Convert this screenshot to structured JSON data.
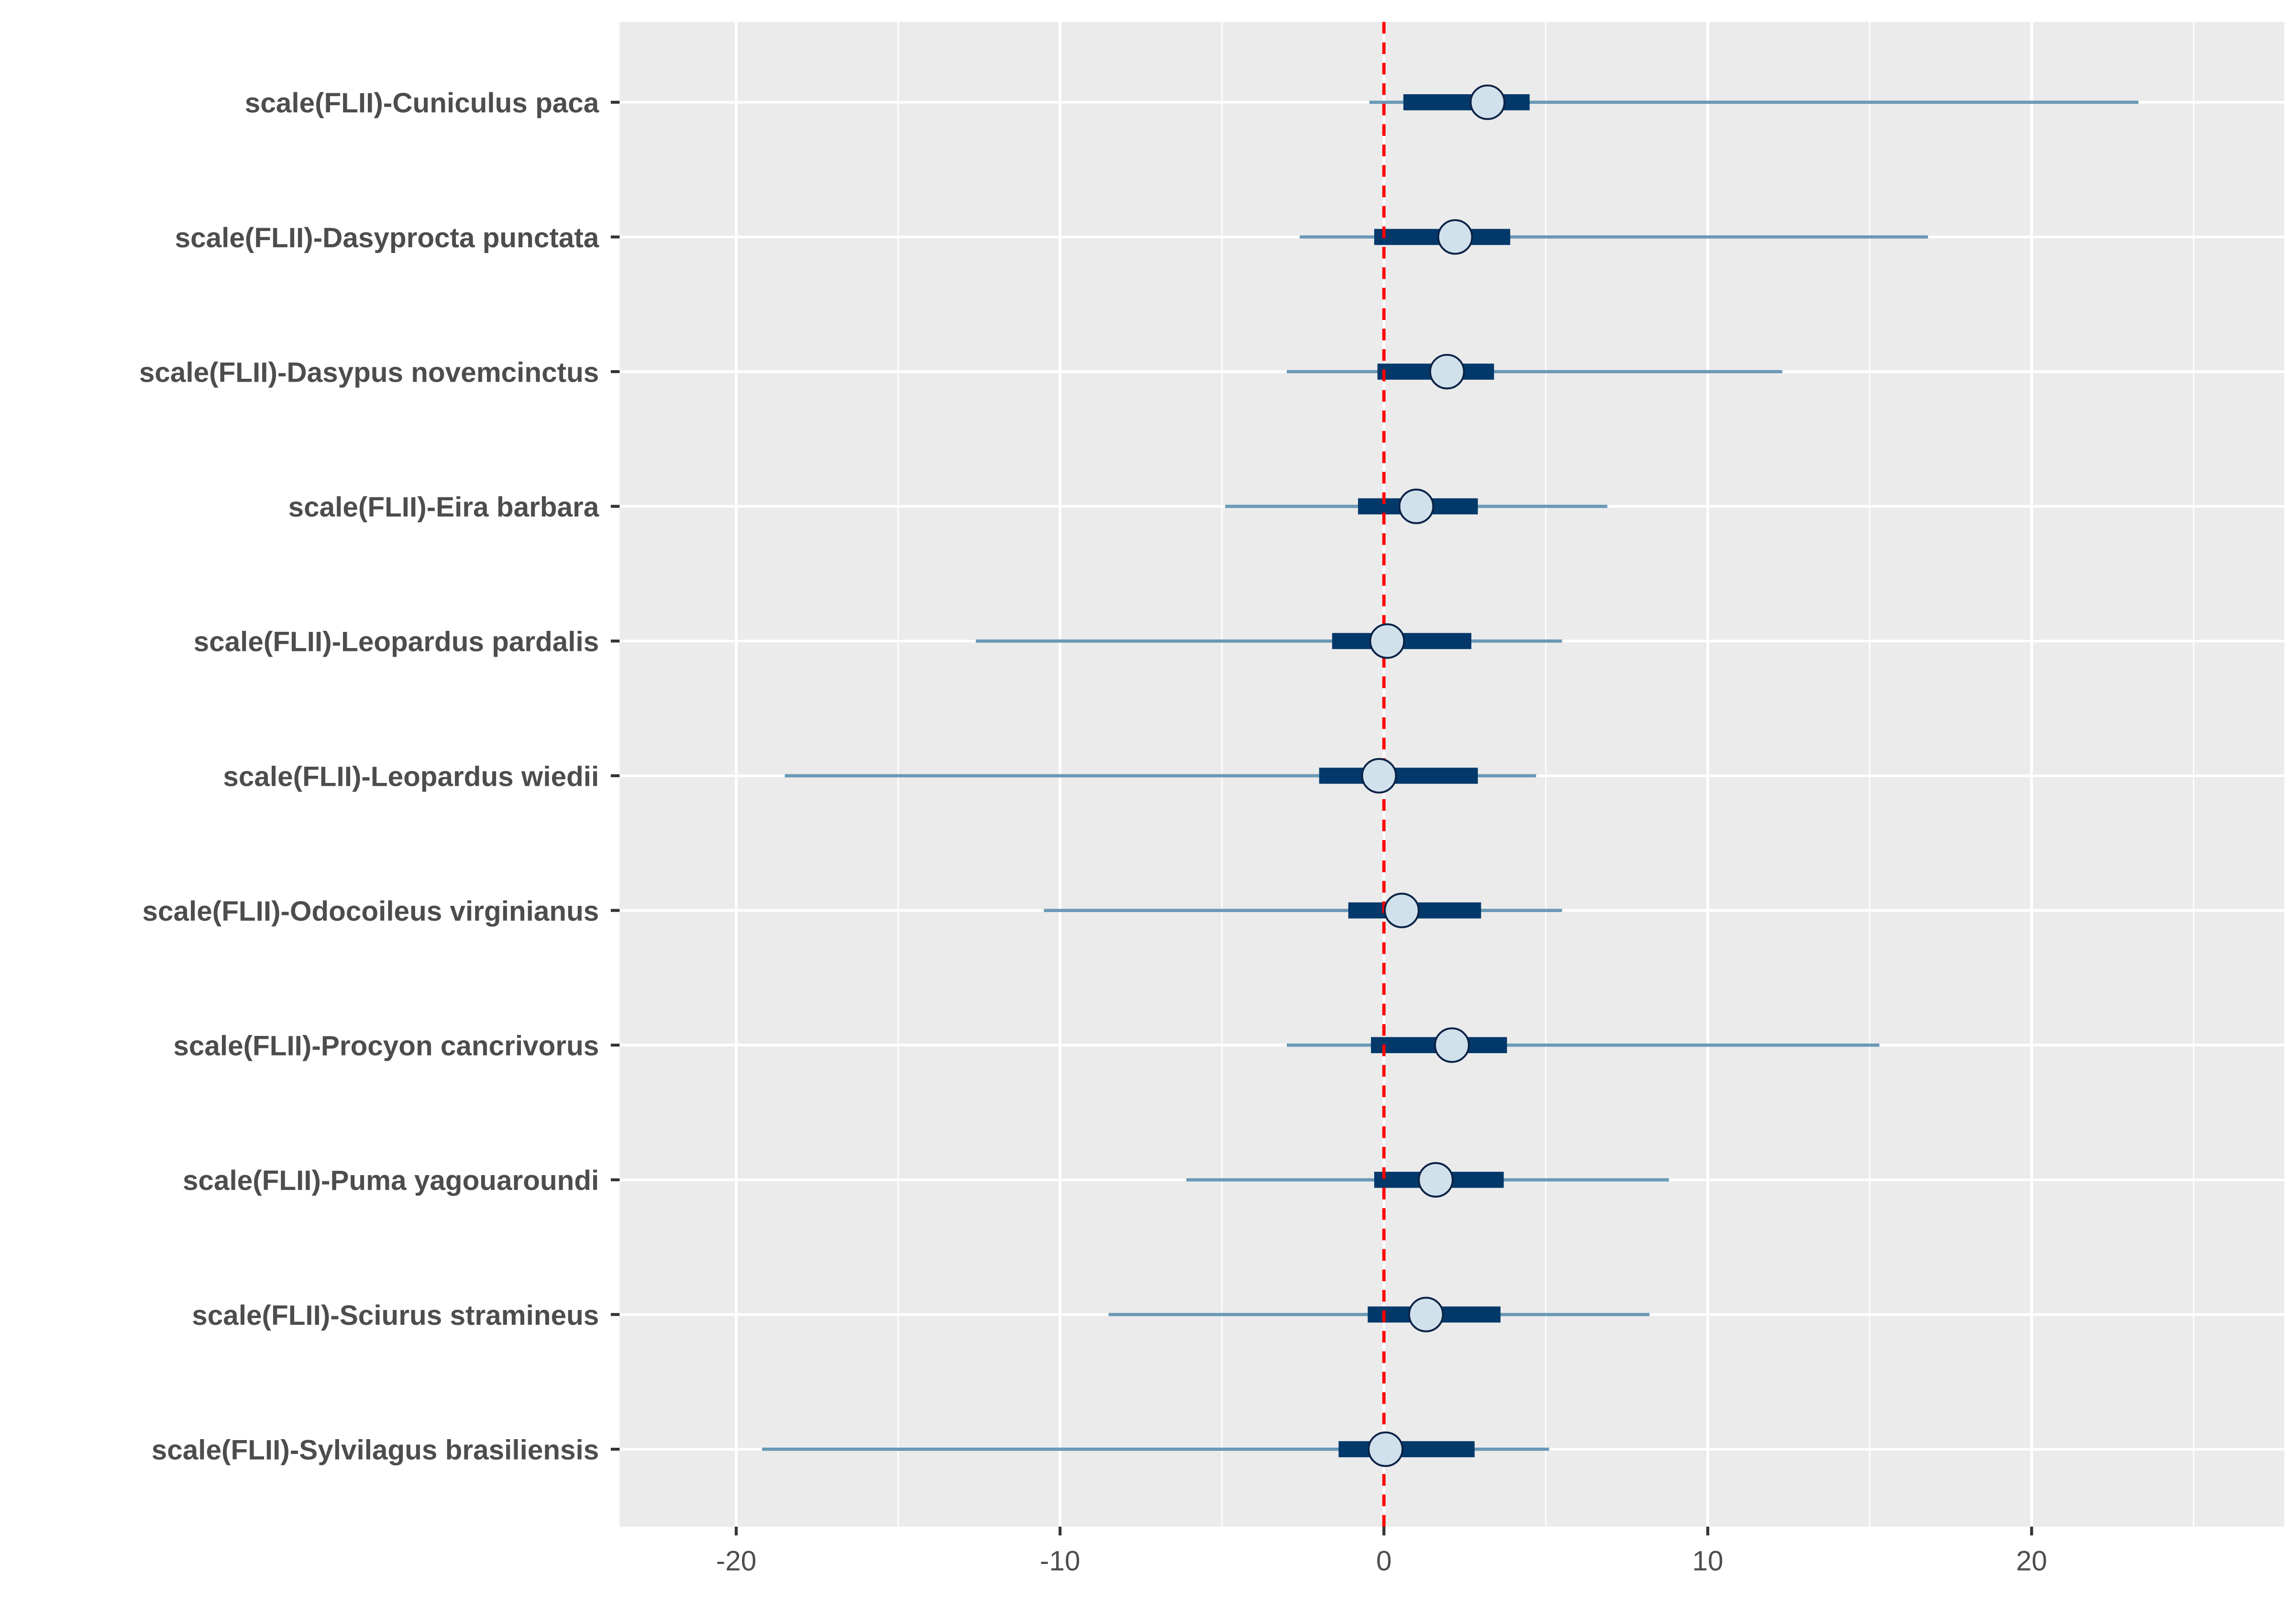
{
  "chart_data": {
    "type": "interval",
    "title": "",
    "xlabel": "",
    "ylabel": "",
    "xlim": [
      -23.6,
      27.8
    ],
    "xticks": [
      -20,
      -10,
      0,
      10,
      20
    ],
    "xtick_labels": [
      "-20",
      "-10",
      "0",
      "10",
      "20"
    ],
    "reference_line": {
      "x": 0,
      "color": "#ff0000",
      "style": "dashed"
    },
    "grid": true,
    "categories": [
      "scale(FLII)-Cuniculus paca",
      "scale(FLII)-Dasyprocta punctata",
      "scale(FLII)-Dasypus novemcinctus",
      "scale(FLII)-Eira barbara",
      "scale(FLII)-Leopardus pardalis",
      "scale(FLII)-Leopardus wiedii",
      "scale(FLII)-Odocoileus virginianus",
      "scale(FLII)-Procyon cancrivorus",
      "scale(FLII)-Puma yagouaroundi",
      "scale(FLII)-Sciurus stramineus",
      "scale(FLII)-Sylvilagus brasiliensis"
    ],
    "point": [
      3.2,
      2.2,
      1.95,
      1.0,
      0.1,
      -0.15,
      0.55,
      2.1,
      1.6,
      1.3,
      0.05
    ],
    "inner_low": [
      0.6,
      -0.3,
      -0.2,
      -0.8,
      -1.6,
      -2.0,
      -1.1,
      -0.4,
      -0.3,
      -0.5,
      -1.4
    ],
    "inner_high": [
      4.5,
      3.9,
      3.4,
      2.9,
      2.7,
      2.9,
      3.0,
      3.8,
      3.7,
      3.6,
      2.8
    ],
    "outer_low": [
      -0.45,
      -2.6,
      -3.0,
      -4.9,
      -12.6,
      -18.5,
      -10.5,
      -3.0,
      -6.1,
      -8.5,
      -19.2
    ],
    "outer_high": [
      23.3,
      16.8,
      12.3,
      6.9,
      5.5,
      4.7,
      5.5,
      15.3,
      8.8,
      8.2,
      5.1
    ],
    "colors": {
      "panel": "#ebebeb",
      "outer": "#6a99b6",
      "inner": "#03386a",
      "point_fill": "#d1e1ec",
      "point_stroke": "#0b2346"
    }
  }
}
